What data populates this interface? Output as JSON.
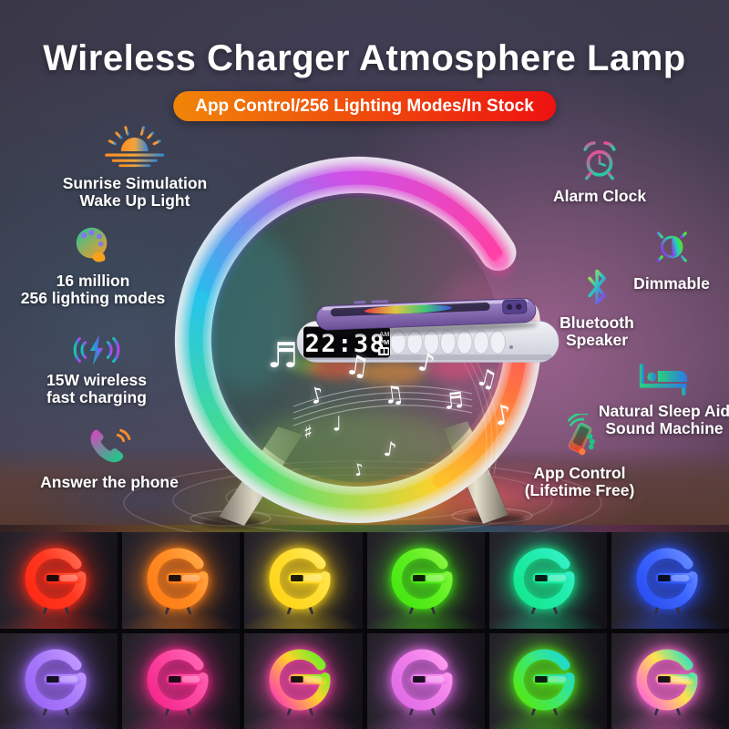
{
  "title": "Wireless Charger Atmosphere Lamp",
  "banner": "App Control/256 Lighting Modes/In Stock",
  "accent": {
    "banner_gradient_start": "#f08508",
    "banner_gradient_end": "#ee1111",
    "title_color": "#ffffff"
  },
  "features_left": [
    {
      "name": "sunrise-simulation",
      "lines": [
        "Sunrise Simulation",
        "Wake Up Light"
      ]
    },
    {
      "name": "lighting-modes",
      "lines": [
        "16 million",
        "256 lighting modes"
      ]
    },
    {
      "name": "fast-charging",
      "lines": [
        "15W wireless",
        "fast charging"
      ]
    },
    {
      "name": "answer-phone",
      "lines": [
        "Answer the phone"
      ]
    }
  ],
  "features_right": [
    {
      "name": "alarm-clock",
      "lines": [
        "Alarm Clock"
      ]
    },
    {
      "name": "dimmable",
      "lines": [
        "Dimmable"
      ]
    },
    {
      "name": "bluetooth-speaker",
      "lines": [
        "Bluetooth",
        "Speaker"
      ]
    },
    {
      "name": "sleep-aid",
      "lines": [
        "Natural Sleep Aid",
        "Sound Machine"
      ]
    },
    {
      "name": "app-control",
      "lines": [
        "App Control",
        "(Lifetime Free)"
      ]
    }
  ],
  "lamp": {
    "clock_time": "22:38",
    "meridiem_top": "AM",
    "meridiem_bottom": "PM",
    "button_count": 7,
    "notes": [
      "♬",
      "♪",
      "♫",
      "♩",
      "♫",
      "♪",
      "♬",
      "♪",
      "♫",
      "♪",
      "♯",
      "♪"
    ]
  },
  "gallery": {
    "variants": [
      {
        "name": "red",
        "c1": "#ff2a14",
        "c3": "#ff3820",
        "c2": "#ff6a50"
      },
      {
        "name": "orange",
        "c1": "#ff7c16",
        "c3": "#ff8c24",
        "c2": "#ffaa48"
      },
      {
        "name": "yellow",
        "c1": "#ffd518",
        "c3": "#ffdd30",
        "c2": "#ffe960"
      },
      {
        "name": "green",
        "c1": "#46e612",
        "c3": "#5ef020",
        "c2": "#8cf542"
      },
      {
        "name": "spring-green",
        "c1": "#14e88e",
        "c3": "#20ecac",
        "c2": "#36f0c8"
      },
      {
        "name": "blue",
        "c1": "#2a50f0",
        "c3": "#3c66ff",
        "c2": "#6a8cff"
      },
      {
        "name": "purple",
        "c1": "#9a66f5",
        "c3": "#aa7cfa",
        "c2": "#c49aff"
      },
      {
        "name": "hot-pink",
        "c1": "#f5288c",
        "c3": "#fa46a0",
        "c2": "#ff66b4"
      },
      {
        "name": "rainbow-warm",
        "c1": "#ff46a8",
        "c3": "#ffd22a",
        "c2": "#64f028"
      },
      {
        "name": "magenta-pink",
        "c1": "#e06ae6",
        "c3": "#f080ea",
        "c2": "#ff9af0"
      },
      {
        "name": "green-cyan",
        "c1": "#52e816",
        "c3": "#3ce87a",
        "c2": "#1cd8d8"
      },
      {
        "name": "rainbow-cool",
        "c1": "#ff6ad2",
        "c3": "#ffe24f",
        "c2": "#2ae0c0"
      }
    ]
  }
}
